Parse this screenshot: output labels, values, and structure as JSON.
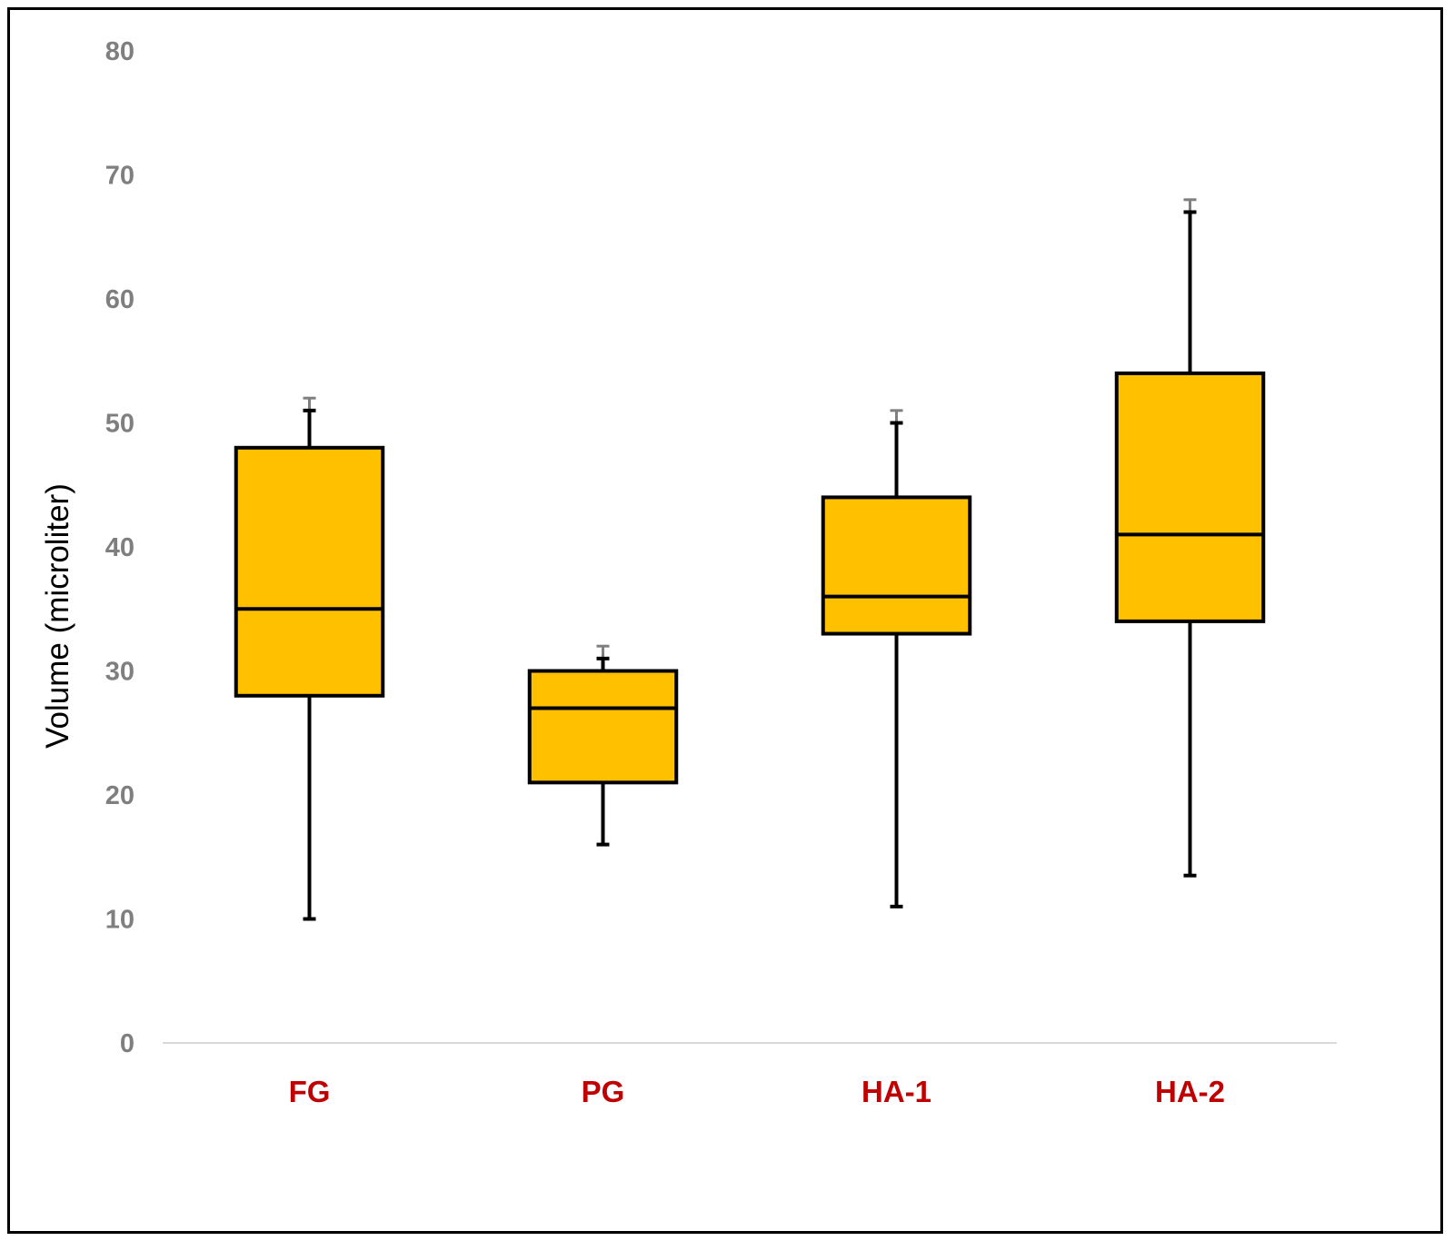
{
  "chart_data": {
    "type": "box",
    "title": "",
    "xlabel": "",
    "ylabel": "Volume  (microliter)",
    "ylim": [
      0,
      80
    ],
    "yticks": [
      0,
      10,
      20,
      30,
      40,
      50,
      60,
      70,
      80
    ],
    "grid": false,
    "categories": [
      "FG",
      "PG",
      "HA-1",
      "HA-2"
    ],
    "boxes": [
      {
        "category": "FG",
        "min": 10,
        "q1": 28,
        "median": 35,
        "q3": 48,
        "max": 51,
        "upper_error": 52
      },
      {
        "category": "PG",
        "min": 16,
        "q1": 21,
        "median": 27,
        "q3": 30,
        "max": 31,
        "upper_error": 32
      },
      {
        "category": "HA-1",
        "min": 11,
        "q1": 33,
        "median": 36,
        "q3": 44,
        "max": 50,
        "upper_error": 51
      },
      {
        "category": "HA-2",
        "min": 13.5,
        "q1": 34,
        "median": 41,
        "q3": 54,
        "max": 67,
        "upper_error": 68
      }
    ],
    "colors": {
      "box_fill": "#ffc000",
      "box_stroke": "#000000",
      "error_cap": "#7f7f7f",
      "category_label": "#c00000",
      "tick_label": "#7f7f7f",
      "baseline": "#d9d9d9"
    }
  }
}
